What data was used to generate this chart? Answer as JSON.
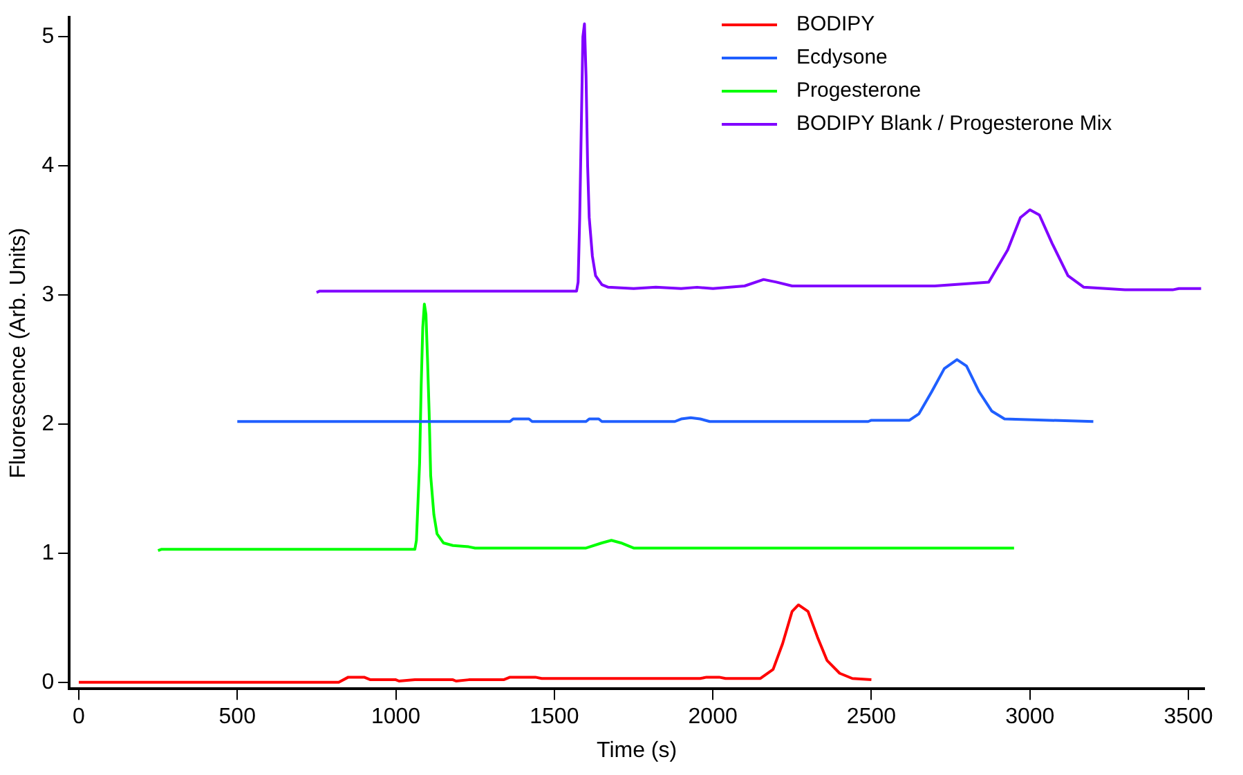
{
  "chart_data": {
    "type": "line",
    "xlabel": "Time (s)",
    "ylabel": "Fluorescence (Arb. Units)",
    "xlim": [
      -30,
      3550
    ],
    "xticks": [
      0,
      500,
      1000,
      1500,
      2000,
      2500,
      3000,
      3500
    ],
    "ylim": [
      -0.05,
      5.15
    ],
    "yticks": [
      0,
      1,
      2,
      3,
      4,
      5
    ],
    "grid": false,
    "legend": "top right",
    "marker": "none",
    "line_style": "solid",
    "series": [
      {
        "name": "BODIPY",
        "color": "#ff0000",
        "x": [
          0,
          820,
          850,
          900,
          920,
          1000,
          1010,
          1060,
          1180,
          1190,
          1230,
          1340,
          1360,
          1440,
          1460,
          1960,
          1980,
          2020,
          2040,
          2150,
          2190,
          2220,
          2250,
          2270,
          2300,
          2330,
          2360,
          2400,
          2440,
          2500
        ],
        "values": [
          0,
          0,
          0.04,
          0.04,
          0.02,
          0.02,
          0.01,
          0.02,
          0.02,
          0.01,
          0.02,
          0.02,
          0.04,
          0.04,
          0.03,
          0.03,
          0.04,
          0.04,
          0.03,
          0.03,
          0.1,
          0.3,
          0.55,
          0.6,
          0.55,
          0.35,
          0.17,
          0.07,
          0.03,
          0.02
        ]
      },
      {
        "name": "Ecdysone",
        "color": "#1f5fff",
        "x": [
          500,
          1360,
          1370,
          1420,
          1430,
          1600,
          1610,
          1640,
          1650,
          1880,
          1900,
          1930,
          1960,
          1990,
          2490,
          2500,
          2560,
          2620,
          2650,
          2690,
          2730,
          2770,
          2800,
          2840,
          2880,
          2920,
          3200
        ],
        "values": [
          2.02,
          2.02,
          2.04,
          2.04,
          2.02,
          2.02,
          2.04,
          2.04,
          2.02,
          2.02,
          2.04,
          2.05,
          2.04,
          2.02,
          2.02,
          2.03,
          2.03,
          2.03,
          2.08,
          2.25,
          2.43,
          2.5,
          2.45,
          2.25,
          2.1,
          2.04,
          2.02
        ]
      },
      {
        "name": "Progesterone",
        "color": "#00ff00",
        "x": [
          250,
          260,
          1060,
          1065,
          1070,
          1075,
          1080,
          1085,
          1090,
          1095,
          1100,
          1105,
          1110,
          1120,
          1130,
          1150,
          1180,
          1230,
          1250,
          1600,
          1650,
          1680,
          1710,
          1750,
          2950
        ],
        "values": [
          1.02,
          1.03,
          1.03,
          1.1,
          1.4,
          1.7,
          2.3,
          2.75,
          2.93,
          2.85,
          2.5,
          2.1,
          1.6,
          1.3,
          1.15,
          1.08,
          1.06,
          1.05,
          1.04,
          1.04,
          1.08,
          1.1,
          1.08,
          1.04,
          1.04
        ]
      },
      {
        "name": "BODIPY Blank / Progesterone Mix",
        "color": "#8000ff",
        "x": [
          750,
          760,
          1570,
          1575,
          1580,
          1585,
          1590,
          1595,
          1600,
          1605,
          1610,
          1620,
          1630,
          1650,
          1670,
          1750,
          1820,
          1900,
          1950,
          2000,
          2100,
          2160,
          2200,
          2250,
          2700,
          2870,
          2930,
          2970,
          3000,
          3030,
          3070,
          3120,
          3170,
          3300,
          3450,
          3470,
          3540
        ],
        "values": [
          3.02,
          3.03,
          3.03,
          3.1,
          3.6,
          4.3,
          5.0,
          5.1,
          4.7,
          4.0,
          3.6,
          3.3,
          3.15,
          3.08,
          3.06,
          3.05,
          3.06,
          3.05,
          3.06,
          3.05,
          3.07,
          3.12,
          3.1,
          3.07,
          3.07,
          3.1,
          3.35,
          3.6,
          3.66,
          3.62,
          3.4,
          3.15,
          3.06,
          3.04,
          3.04,
          3.05,
          3.05
        ]
      }
    ]
  }
}
